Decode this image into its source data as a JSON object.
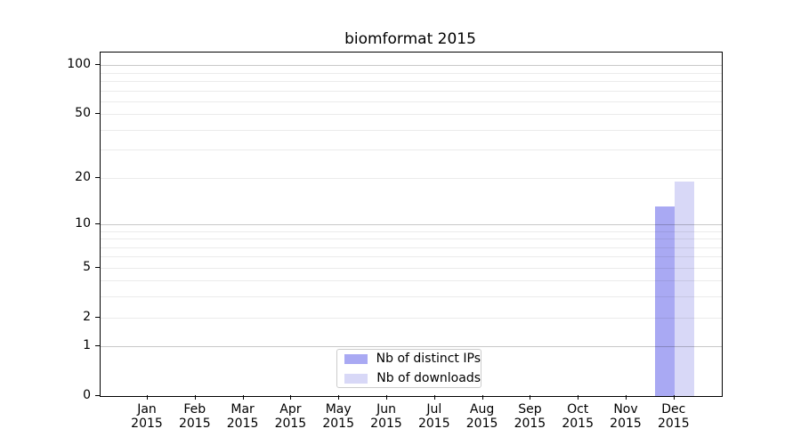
{
  "title": "biomformat 2015",
  "chart_data": {
    "type": "bar",
    "title": "biomformat 2015",
    "categories": [
      "Jan 2015",
      "Feb 2015",
      "Mar 2015",
      "Apr 2015",
      "May 2015",
      "Jun 2015",
      "Jul 2015",
      "Aug 2015",
      "Sep 2015",
      "Oct 2015",
      "Nov 2015",
      "Dec 2015"
    ],
    "series": [
      {
        "name": "Nb of distinct IPs",
        "color": "#a9a9f3",
        "values": [
          0,
          0,
          0,
          0,
          0,
          0,
          0,
          0,
          0,
          0,
          0,
          13
        ]
      },
      {
        "name": "Nb of downloads",
        "color": "#d8d8f7",
        "values": [
          0,
          0,
          0,
          0,
          0,
          0,
          0,
          0,
          0,
          0,
          0,
          19
        ]
      }
    ],
    "y_scale": "log1p",
    "y_ticks": [
      0,
      1,
      2,
      5,
      10,
      20,
      50,
      100
    ],
    "ylim": [
      0,
      120
    ],
    "xlabel": "",
    "ylabel": "",
    "grid": "horizontal",
    "grid_major_values": [
      1,
      10,
      100
    ],
    "grid_minor_values": [
      2,
      3,
      4,
      5,
      6,
      7,
      8,
      9,
      20,
      30,
      40,
      50,
      60,
      70,
      80,
      90
    ],
    "legend_position": "inside-bottom-center",
    "colors": {
      "grid_major": "#c8c8c8",
      "grid_minor": "#ebebeb",
      "spine": "#000000",
      "text": "#000000"
    }
  }
}
